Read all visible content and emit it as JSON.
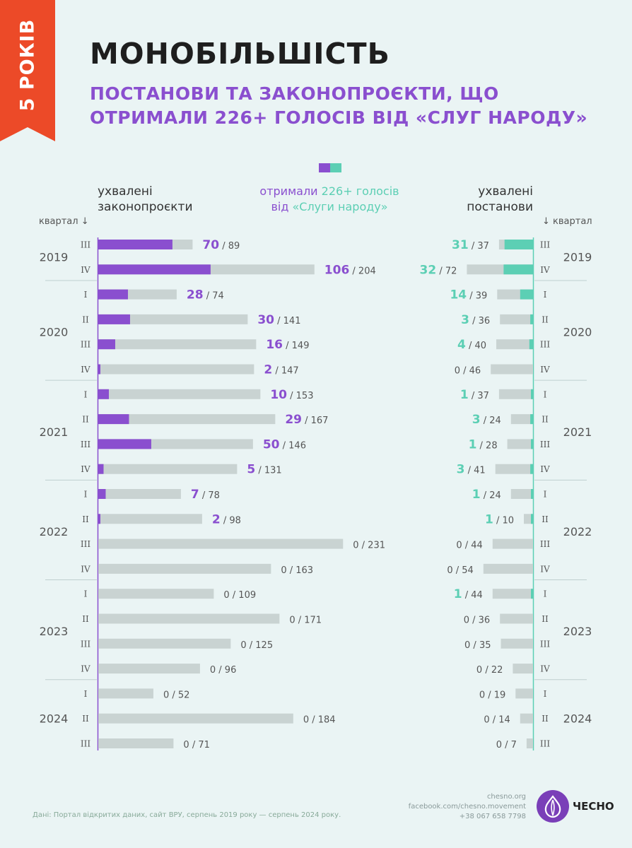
{
  "ribbon": "5 РОКІВ",
  "title": "МОНОБІЛЬШІСТЬ",
  "subtitle": "ПОСТАНОВИ ТА ЗАКОНОПРОЄКТИ, ЩО ОТРИМАЛИ 226+ ГОЛОСІВ ВІД «СЛУГ НАРОДУ»",
  "headers": {
    "left_line1": "ухвалені",
    "left_line2": "законопроєкти",
    "mid_line1_a": "отримали ",
    "mid_line1_b": "226+ голосів",
    "mid_line2_a": "від ",
    "mid_line2_b": "«Слуги народу»",
    "right_line1": "ухвалені",
    "right_line2": "постанови",
    "quarter_left": "квартал ↓",
    "quarter_right": "↓ квартал"
  },
  "colors": {
    "purple": "#8a4fcf",
    "teal": "#5ccfb4",
    "gray": "#c9d3d2",
    "orange": "#ec4a28"
  },
  "chart_data": {
    "type": "bar",
    "years": [
      {
        "year": "2019",
        "quarters": [
          "III",
          "IV"
        ]
      },
      {
        "year": "2020",
        "quarters": [
          "I",
          "II",
          "III",
          "IV"
        ]
      },
      {
        "year": "2021",
        "quarters": [
          "I",
          "II",
          "III",
          "IV"
        ]
      },
      {
        "year": "2022",
        "quarters": [
          "I",
          "II",
          "III",
          "IV"
        ]
      },
      {
        "year": "2023",
        "quarters": [
          "I",
          "II",
          "III",
          "IV"
        ]
      },
      {
        "year": "2024",
        "quarters": [
          "I",
          "II",
          "III"
        ]
      }
    ],
    "laws": {
      "name": "ухвалені законопроєкти",
      "supported": [
        70,
        106,
        28,
        30,
        16,
        2,
        10,
        29,
        50,
        5,
        7,
        2,
        0,
        0,
        0,
        0,
        0,
        0,
        0,
        0,
        0
      ],
      "total": [
        89,
        204,
        74,
        141,
        149,
        147,
        153,
        167,
        146,
        131,
        78,
        98,
        231,
        163,
        109,
        171,
        125,
        96,
        52,
        184,
        71
      ]
    },
    "resolutions": {
      "name": "ухвалені постанови",
      "supported": [
        31,
        32,
        14,
        3,
        4,
        0,
        1,
        3,
        1,
        3,
        1,
        1,
        0,
        0,
        1,
        0,
        0,
        0,
        0,
        0,
        0
      ],
      "total": [
        37,
        72,
        39,
        36,
        40,
        46,
        37,
        24,
        28,
        41,
        24,
        10,
        44,
        54,
        44,
        36,
        35,
        22,
        19,
        14,
        7
      ]
    }
  },
  "footer": {
    "source": "Дані: Портал відкритих даних, сайт ВРУ, серпень 2019 року — серпень 2024 року.",
    "site": "chesno.org",
    "facebook": "facebook.com/chesno.movement",
    "phone": "+38 067 658 7798",
    "logo_text": "ЧЕСНО"
  }
}
